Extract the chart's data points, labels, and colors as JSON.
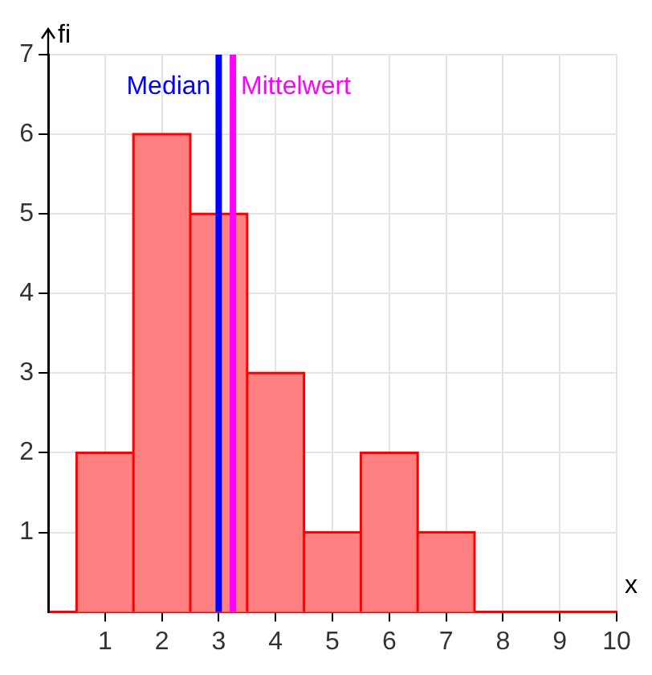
{
  "chart_data": {
    "type": "histogram",
    "xlabel": "x",
    "ylabel": "fi",
    "bins": [
      0.5,
      1.5,
      2.5,
      3.5,
      4.5,
      5.5,
      6.5,
      7.5
    ],
    "values": [
      2,
      6,
      5,
      3,
      1,
      2,
      1
    ],
    "color": "#ff8080",
    "xlim": [
      0,
      10
    ],
    "xticks": [
      1,
      2,
      3,
      4,
      5,
      6,
      7,
      8,
      9,
      10
    ],
    "ylim": [
      0,
      7
    ],
    "yticks": [
      1,
      2,
      3,
      4,
      5,
      6,
      7
    ],
    "grid": true,
    "ref_lines": [
      {
        "axis": "x",
        "value": 3,
        "label": "Median",
        "color": "#0000ff"
      },
      {
        "axis": "x",
        "value": 3.25,
        "label": "Mittelwert",
        "color": "#ff00ff"
      }
    ]
  }
}
